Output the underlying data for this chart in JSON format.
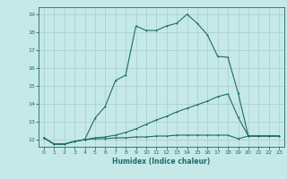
{
  "xlabel": "Humidex (Indice chaleur)",
  "bg_color": "#c5e8e8",
  "grid_color": "#b0d0d0",
  "line_color": "#1e6b6b",
  "xlim": [
    -0.5,
    23.5
  ],
  "ylim": [
    11.6,
    19.4
  ],
  "yticks": [
    12,
    13,
    14,
    15,
    16,
    17,
    18,
    19
  ],
  "xticks": [
    0,
    1,
    2,
    3,
    4,
    5,
    6,
    7,
    8,
    9,
    10,
    11,
    12,
    13,
    14,
    15,
    16,
    17,
    18,
    19,
    20,
    21,
    22,
    23
  ],
  "line1_x": [
    0,
    1,
    2,
    3,
    4,
    5,
    6,
    7,
    8,
    9,
    10,
    11,
    12,
    13,
    14,
    15,
    16,
    17,
    18,
    19,
    20,
    21,
    22,
    23
  ],
  "line1_y": [
    12.1,
    11.75,
    11.75,
    11.9,
    12.0,
    13.2,
    13.85,
    15.3,
    15.6,
    18.35,
    18.1,
    18.1,
    18.35,
    18.5,
    19.0,
    18.5,
    17.85,
    16.65,
    16.6,
    14.6,
    12.2,
    12.2,
    12.2,
    12.2
  ],
  "line2_x": [
    0,
    1,
    2,
    3,
    4,
    5,
    6,
    7,
    8,
    9,
    10,
    11,
    12,
    13,
    14,
    15,
    16,
    17,
    18,
    19,
    20,
    21,
    22,
    23
  ],
  "line2_y": [
    12.1,
    11.75,
    11.75,
    11.9,
    12.0,
    12.1,
    12.15,
    12.25,
    12.4,
    12.6,
    12.85,
    13.1,
    13.3,
    13.55,
    13.75,
    13.95,
    14.15,
    14.4,
    14.55,
    13.25,
    12.2,
    12.2,
    12.2,
    12.2
  ],
  "line3_x": [
    0,
    1,
    2,
    3,
    4,
    5,
    6,
    7,
    8,
    9,
    10,
    11,
    12,
    13,
    14,
    15,
    16,
    17,
    18,
    19,
    20,
    21,
    22,
    23
  ],
  "line3_y": [
    12.1,
    11.75,
    11.75,
    11.9,
    12.0,
    12.05,
    12.05,
    12.1,
    12.1,
    12.15,
    12.15,
    12.2,
    12.2,
    12.25,
    12.25,
    12.25,
    12.25,
    12.25,
    12.25,
    12.05,
    12.2,
    12.2,
    12.2,
    12.2
  ]
}
